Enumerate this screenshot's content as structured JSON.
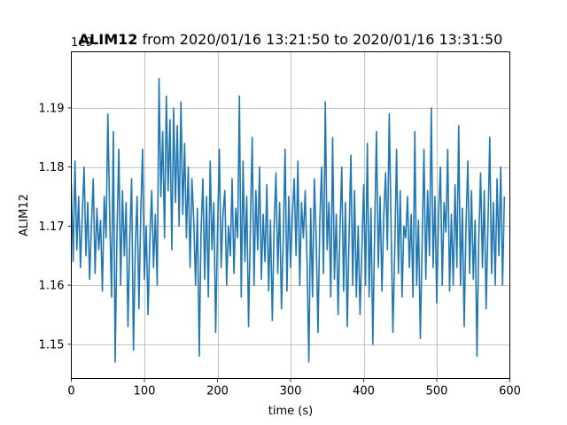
{
  "chart_data": {
    "type": "line",
    "title_bold": "ALIM12",
    "title_rest": " from 2020/01/16 13:21:50 to 2020/01/16 13:31:50",
    "xlabel": "time (s)",
    "ylabel": "ALIM12",
    "offset_label": "1e9",
    "xlim": [
      0,
      600
    ],
    "ylim": [
      1.1442,
      1.1995
    ],
    "x_ticks": [
      0,
      100,
      200,
      300,
      400,
      500,
      600
    ],
    "y_ticks": [
      1.15,
      1.16,
      1.17,
      1.18,
      1.19
    ],
    "x_tick_labels": [
      "0",
      "100",
      "200",
      "300",
      "400",
      "500",
      "600"
    ],
    "y_tick_labels": [
      "1.15",
      "1.16",
      "1.17",
      "1.18",
      "1.19"
    ],
    "grid": true,
    "series_color": "#1f77b4",
    "series": [
      {
        "x_start": 0,
        "x_step": 2.5,
        "y": [
          1.177,
          1.164,
          1.181,
          1.166,
          1.175,
          1.163,
          1.172,
          1.18,
          1.165,
          1.174,
          1.161,
          1.17,
          1.178,
          1.162,
          1.173,
          1.166,
          1.171,
          1.159,
          1.175,
          1.168,
          1.189,
          1.172,
          1.158,
          1.186,
          1.147,
          1.169,
          1.183,
          1.16,
          1.176,
          1.165,
          1.174,
          1.153,
          1.168,
          1.178,
          1.149,
          1.166,
          1.175,
          1.156,
          1.172,
          1.183,
          1.161,
          1.17,
          1.155,
          1.168,
          1.176,
          1.163,
          1.172,
          1.16,
          1.195,
          1.175,
          1.186,
          1.168,
          1.192,
          1.176,
          1.188,
          1.166,
          1.19,
          1.174,
          1.187,
          1.17,
          1.191,
          1.172,
          1.184,
          1.168,
          1.18,
          1.163,
          1.178,
          1.171,
          1.16,
          1.173,
          1.148,
          1.169,
          1.178,
          1.161,
          1.175,
          1.158,
          1.181,
          1.166,
          1.174,
          1.152,
          1.169,
          1.183,
          1.163,
          1.172,
          1.176,
          1.16,
          1.17,
          1.165,
          1.178,
          1.162,
          1.173,
          1.168,
          1.192,
          1.158,
          1.181,
          1.164,
          1.175,
          1.153,
          1.17,
          1.185,
          1.16,
          1.176,
          1.166,
          1.18,
          1.161,
          1.172,
          1.164,
          1.177,
          1.159,
          1.171,
          1.154,
          1.17,
          1.179,
          1.162,
          1.174,
          1.156,
          1.168,
          1.183,
          1.159,
          1.175,
          1.163,
          1.172,
          1.178,
          1.165,
          1.181,
          1.16,
          1.174,
          1.168,
          1.176,
          1.164,
          1.147,
          1.173,
          1.158,
          1.178,
          1.168,
          1.152,
          1.171,
          1.18,
          1.162,
          1.191,
          1.166,
          1.174,
          1.158,
          1.185,
          1.161,
          1.172,
          1.155,
          1.169,
          1.18,
          1.159,
          1.174,
          1.153,
          1.168,
          1.182,
          1.16,
          1.176,
          1.158,
          1.17,
          1.155,
          1.166,
          1.177,
          1.16,
          1.184,
          1.158,
          1.173,
          1.15,
          1.169,
          1.186,
          1.163,
          1.175,
          1.159,
          1.172,
          1.179,
          1.166,
          1.189,
          1.17,
          1.152,
          1.166,
          1.183,
          1.162,
          1.176,
          1.158,
          1.17,
          1.168,
          1.175,
          1.163,
          1.172,
          1.158,
          1.186,
          1.16,
          1.171,
          1.151,
          1.167,
          1.183,
          1.161,
          1.176,
          1.165,
          1.19,
          1.163,
          1.175,
          1.157,
          1.172,
          1.18,
          1.16,
          1.174,
          1.169,
          1.183,
          1.159,
          1.172,
          1.16,
          1.177,
          1.163,
          1.187,
          1.16,
          1.173,
          1.153,
          1.17,
          1.181,
          1.162,
          1.176,
          1.161,
          1.171,
          1.148,
          1.168,
          1.179,
          1.163,
          1.176,
          1.156,
          1.17,
          1.185,
          1.162,
          1.174,
          1.16,
          1.178,
          1.165,
          1.18,
          1.16,
          1.175
        ]
      }
    ]
  }
}
